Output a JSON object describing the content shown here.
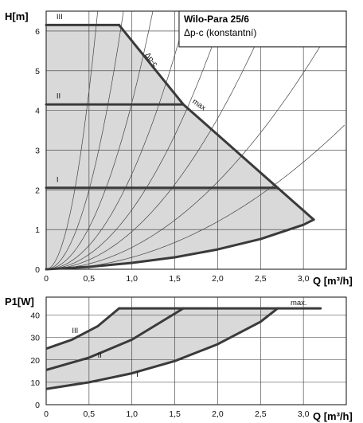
{
  "chart_data": [
    {
      "type": "line",
      "title": "Wilo-Para 25/6",
      "subtitle": "Δp-c (konstantní)",
      "ylabel": "H[m]",
      "xlabel": "Q [m³/h]",
      "xlim": [
        0,
        3.5
      ],
      "ylim": [
        0,
        6.5
      ],
      "xticks": [
        "0",
        "0,5",
        "1,0",
        "1,5",
        "2,0",
        "2,5",
        "3,0"
      ],
      "yticks": [
        "0",
        "1",
        "2",
        "3",
        "4",
        "5",
        "6"
      ],
      "grid": true,
      "shaded_region": true,
      "series": [
        {
          "name": "III",
          "label_xy": [
            0.12,
            6.3
          ],
          "x": [
            0,
            0.85
          ],
          "y": [
            6.15,
            6.15
          ]
        },
        {
          "name": "II",
          "label_xy": [
            0.12,
            4.3
          ],
          "x": [
            0,
            1.6
          ],
          "y": [
            4.15,
            4.15
          ]
        },
        {
          "name": "I",
          "label_xy": [
            0.12,
            2.2
          ],
          "x": [
            0,
            2.7
          ],
          "y": [
            2.05,
            2.05
          ]
        },
        {
          "name": "Δp-c",
          "label_xy": [
            1.15,
            5.4
          ],
          "x": [
            0.85,
            1.6,
            2.7,
            3.12
          ],
          "y": [
            6.15,
            4.15,
            2.05,
            1.25
          ]
        },
        {
          "name": "max",
          "label_xy": [
            1.7,
            4.2
          ],
          "x": [
            0,
            0.5,
            1.0,
            1.5,
            2.0,
            2.5,
            3.0,
            3.12
          ],
          "y": [
            0.0,
            0.06,
            0.16,
            0.3,
            0.5,
            0.76,
            1.12,
            1.25
          ]
        }
      ],
      "system_curves": [
        {
          "k": 18.0
        },
        {
          "k": 8.0
        },
        {
          "k": 4.2
        },
        {
          "k": 2.4
        },
        {
          "k": 1.5
        },
        {
          "k": 0.95
        },
        {
          "k": 0.55
        },
        {
          "k": 0.3
        }
      ]
    },
    {
      "type": "line",
      "ylabel": "P1[W]",
      "xlabel": "Q [m³/h]",
      "xlim": [
        0,
        3.5
      ],
      "ylim": [
        0,
        48
      ],
      "xticks": [
        "0",
        "0,5",
        "1,0",
        "1,5",
        "2,0",
        "2,5",
        "3,0"
      ],
      "yticks": [
        "0",
        "10",
        "20",
        "30",
        "40"
      ],
      "grid": true,
      "shaded_region": true,
      "series": [
        {
          "name": "III",
          "label_xy": [
            0.3,
            32
          ],
          "x": [
            0,
            0.3,
            0.6,
            0.85
          ],
          "y": [
            25,
            29,
            35,
            43
          ]
        },
        {
          "name": "II",
          "label_xy": [
            0.6,
            21
          ],
          "x": [
            0,
            0.5,
            1.0,
            1.6
          ],
          "y": [
            15.5,
            21,
            29,
            43
          ]
        },
        {
          "name": "I",
          "label_xy": [
            1.05,
            12.5
          ],
          "x": [
            0,
            0.5,
            1.0,
            1.5,
            2.0,
            2.5,
            2.7
          ],
          "y": [
            7,
            10,
            14,
            19.5,
            27,
            37,
            43
          ]
        },
        {
          "name": "max.",
          "label_xy": [
            2.85,
            44.5
          ],
          "x": [
            0.85,
            3.2
          ],
          "y": [
            43,
            43
          ]
        }
      ]
    }
  ]
}
